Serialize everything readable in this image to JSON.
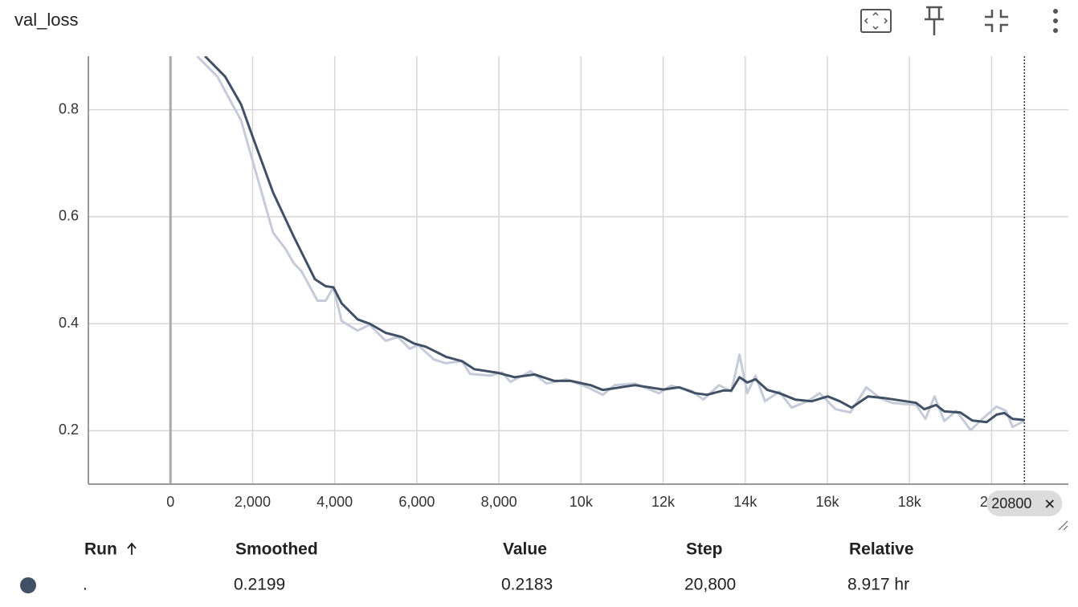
{
  "title": "val_loss",
  "chart_data": {
    "type": "line",
    "xlim": [
      -2000,
      21870
    ],
    "ylim": [
      0.1,
      0.9
    ],
    "xticks": [
      0,
      {
        "value": 2000,
        "label": "2,000"
      },
      {
        "value": 4000,
        "label": "4,000"
      },
      {
        "value": 6000,
        "label": "6,000"
      },
      {
        "value": 8000,
        "label": "8,000"
      },
      {
        "value": 10000,
        "label": "10k"
      },
      {
        "value": 12000,
        "label": "12k"
      },
      {
        "value": 14000,
        "label": "14k"
      },
      {
        "value": 16000,
        "label": "16k"
      },
      {
        "value": 18000,
        "label": "18k"
      },
      {
        "value": 20000,
        "label": "20k"
      }
    ],
    "yticks": [
      0.2,
      0.4,
      0.6,
      0.8
    ],
    "grid": true,
    "cursor_step": 20800,
    "series": [
      {
        "color": "#c5cbd8",
        "x": [
          650,
          1140,
          1720,
          2110,
          2500,
          2800,
          3000,
          3190,
          3580,
          3780,
          3970,
          4170,
          4560,
          4850,
          5240,
          5540,
          5830,
          6030,
          6420,
          6710,
          7100,
          7300,
          7790,
          8080,
          8280,
          8770,
          9160,
          9650,
          10130,
          10530,
          10820,
          11310,
          11900,
          12190,
          12680,
          12980,
          13360,
          13660,
          13860,
          14050,
          14250,
          14480,
          14830,
          15130,
          15520,
          15810,
          16200,
          16560,
          16950,
          17280,
          17570,
          18160,
          18390,
          18610,
          18850,
          19140,
          19490,
          19820,
          20120,
          20350,
          20510,
          20800
        ],
        "values": [
          0.9,
          0.862,
          0.78,
          0.675,
          0.57,
          0.54,
          0.513,
          0.498,
          0.443,
          0.443,
          0.468,
          0.405,
          0.387,
          0.398,
          0.368,
          0.375,
          0.353,
          0.36,
          0.333,
          0.326,
          0.33,
          0.306,
          0.303,
          0.309,
          0.291,
          0.311,
          0.288,
          0.296,
          0.282,
          0.267,
          0.285,
          0.288,
          0.27,
          0.284,
          0.275,
          0.258,
          0.285,
          0.273,
          0.342,
          0.27,
          0.303,
          0.255,
          0.273,
          0.243,
          0.255,
          0.27,
          0.24,
          0.234,
          0.281,
          0.261,
          0.252,
          0.248,
          0.222,
          0.264,
          0.218,
          0.237,
          0.201,
          0.225,
          0.245,
          0.237,
          0.207,
          0.2183
        ]
      },
      {
        "color": "#425066",
        "x": [
          840,
          1330,
          1720,
          2000,
          2500,
          3000,
          3520,
          3780,
          3970,
          4170,
          4560,
          4850,
          5240,
          5640,
          5930,
          6220,
          6710,
          7100,
          7400,
          7980,
          8380,
          8870,
          9350,
          9750,
          10230,
          10530,
          11310,
          12000,
          12390,
          12780,
          13070,
          13460,
          13660,
          13860,
          14050,
          14250,
          14540,
          14830,
          15220,
          15620,
          16010,
          16300,
          16590,
          16990,
          17380,
          18160,
          18360,
          18650,
          18850,
          19240,
          19530,
          19880,
          20120,
          20310,
          20510,
          20800
        ],
        "values": [
          0.9,
          0.862,
          0.81,
          0.75,
          0.645,
          0.563,
          0.483,
          0.47,
          0.468,
          0.438,
          0.408,
          0.4,
          0.383,
          0.375,
          0.363,
          0.357,
          0.338,
          0.33,
          0.315,
          0.308,
          0.3,
          0.305,
          0.293,
          0.293,
          0.285,
          0.276,
          0.285,
          0.277,
          0.281,
          0.27,
          0.267,
          0.275,
          0.275,
          0.3,
          0.29,
          0.296,
          0.276,
          0.27,
          0.258,
          0.255,
          0.264,
          0.255,
          0.243,
          0.264,
          0.261,
          0.252,
          0.24,
          0.248,
          0.236,
          0.234,
          0.219,
          0.216,
          0.23,
          0.233,
          0.222,
          0.2199
        ]
      }
    ]
  },
  "table": {
    "headers": [
      "Run",
      "Smoothed",
      "Value",
      "Step",
      "Relative"
    ],
    "rows": [
      [
        ".",
        "0.2199",
        "0.2183",
        "20,800",
        "8.917 hr"
      ]
    ]
  }
}
